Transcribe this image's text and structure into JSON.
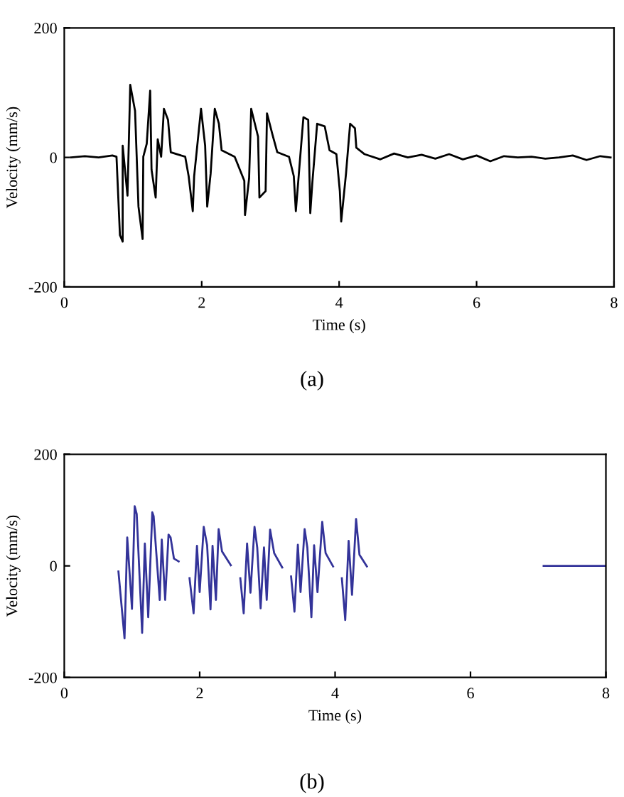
{
  "chart_data": [
    {
      "type": "line",
      "xlabel": "Time (s)",
      "ylabel": "Velocity (mm/s)",
      "annotations": [
        "(a)"
      ],
      "xlim": [
        0,
        8
      ],
      "ylim": [
        -200,
        200
      ],
      "xticks": [
        0,
        2,
        4,
        6,
        8
      ],
      "yticks": [
        -200,
        0,
        200
      ],
      "grid": false,
      "legend": false,
      "series": [
        {
          "color": "#000000",
          "x": [
            0.1,
            0.3,
            0.5,
            0.7,
            0.76,
            0.81,
            0.85,
            0.85,
            0.92,
            0.96,
            1.03,
            1.08,
            1.14,
            1.15,
            1.2,
            1.25,
            1.27,
            1.33,
            1.36,
            1.41,
            1.45,
            1.51,
            1.55,
            1.76,
            1.81,
            1.87,
            1.89,
            1.99,
            2.05,
            2.08,
            2.13,
            2.19,
            2.25,
            2.29,
            2.48,
            2.62,
            2.63,
            2.69,
            2.72,
            2.82,
            2.84,
            2.93,
            2.95,
            3.03,
            3.1,
            3.27,
            3.34,
            3.37,
            3.48,
            3.55,
            3.58,
            3.61,
            3.68,
            3.79,
            3.86,
            3.96,
            4.01,
            4.03,
            4.1,
            4.16,
            4.23,
            4.25,
            4.37,
            4.6,
            4.8,
            5.0,
            5.2,
            5.4,
            5.6,
            5.8,
            6.0,
            6.2,
            6.4,
            6.6,
            6.8,
            7.0,
            7.2,
            7.4,
            7.6,
            7.8,
            7.95
          ],
          "values": [
            0,
            2,
            0,
            3,
            1,
            -120,
            -130,
            18,
            -59,
            112,
            72,
            -76,
            -126,
            1,
            21,
            103,
            -19,
            -62,
            28,
            1,
            75,
            58,
            8,
            1,
            -29,
            -83,
            -29,
            75,
            18,
            -76,
            -25,
            75,
            52,
            11,
            1,
            -36,
            -89,
            -32,
            75,
            32,
            -62,
            -52,
            68,
            35,
            8,
            1,
            -29,
            -83,
            62,
            58,
            -86,
            -39,
            52,
            48,
            11,
            5,
            -52,
            -99,
            -25,
            52,
            45,
            15,
            5,
            -3,
            6,
            0,
            4,
            -2,
            5,
            -3,
            3,
            -6,
            2,
            0,
            1,
            -2,
            0,
            3,
            -4,
            2,
            0
          ]
        }
      ]
    },
    {
      "type": "line",
      "xlabel": "Time (s)",
      "ylabel": "Velocity (mm/s)",
      "annotations": [
        "(b)"
      ],
      "xlim": [
        0,
        8
      ],
      "ylim": [
        -200,
        200
      ],
      "xticks": [
        0,
        2,
        4,
        6,
        8
      ],
      "yticks": [
        -200,
        0,
        200
      ],
      "grid": false,
      "legend": false,
      "series": [
        {
          "color": "#333399",
          "x": [
            0.8,
            0.89,
            0.93,
            1.0,
            1.04,
            1.07,
            1.15,
            1.19,
            1.24,
            1.3,
            1.32,
            1.41,
            1.44,
            1.49,
            1.54,
            1.57,
            1.62,
            1.69,
            1.77,
            1.85,
            1.91,
            1.96,
            2.0,
            2.06,
            2.11,
            2.16,
            2.19,
            2.24,
            2.28,
            2.33,
            2.46,
            2.53,
            2.6,
            2.65,
            2.7,
            2.75,
            2.81,
            2.85,
            2.9,
            2.95,
            2.99,
            3.04,
            3.1,
            3.22,
            3.28,
            3.35,
            3.4,
            3.45,
            3.49,
            3.55,
            3.59,
            3.65,
            3.69,
            3.74,
            3.81,
            3.86,
            3.97,
            4.03,
            4.1,
            4.15,
            4.2,
            4.25,
            4.31,
            4.36,
            4.47,
            5.8,
            7.08,
            8.0
          ],
          "values": [
            -10,
            -130,
            51,
            -77,
            107,
            93,
            -120,
            40,
            -92,
            96,
            89,
            -61,
            47,
            -61,
            56,
            51,
            13,
            8,
            null,
            -22,
            -85,
            36,
            -47,
            70,
            37,
            -78,
            36,
            -61,
            66,
            26,
            1,
            null,
            -22,
            -85,
            40,
            -48,
            70,
            33,
            -76,
            33,
            -61,
            65,
            23,
            -3,
            null,
            -19,
            -82,
            38,
            -47,
            66,
            33,
            -92,
            37,
            -47,
            79,
            23,
            -1,
            null,
            -22,
            -97,
            45,
            -52,
            84,
            20,
            -1,
            null,
            0,
            0
          ]
        }
      ]
    }
  ]
}
